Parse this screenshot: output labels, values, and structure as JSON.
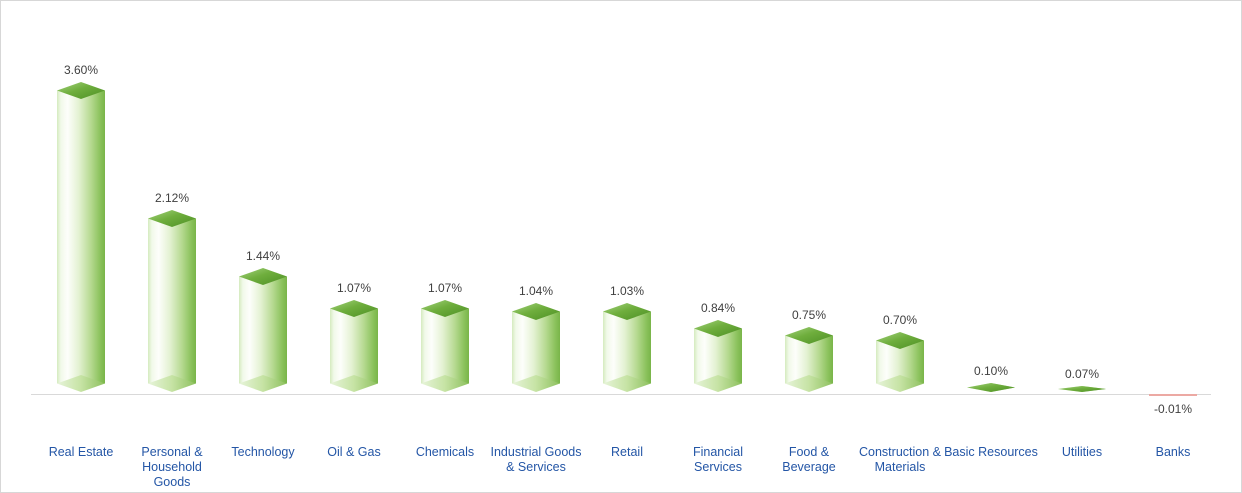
{
  "chart_data": {
    "type": "bar",
    "title": "",
    "xlabel": "",
    "ylabel": "",
    "ylim": [
      -0.1,
      4.0
    ],
    "grid": false,
    "legend": null,
    "categories": [
      "Real Estate",
      "Personal & Household Goods",
      "Technology",
      "Oil & Gas",
      "Chemicals",
      "Industrial Goods & Services",
      "Retail",
      "Financial Services",
      "Food & Beverage",
      "Construction & Materials",
      "Basic Resources",
      "Utilities",
      "Banks"
    ],
    "values": [
      3.6,
      2.12,
      1.44,
      1.07,
      1.07,
      1.04,
      1.03,
      0.84,
      0.75,
      0.7,
      0.1,
      0.07,
      -0.01
    ],
    "value_labels": [
      "3.60%",
      "2.12%",
      "1.44%",
      "1.07%",
      "1.07%",
      "1.04%",
      "1.03%",
      "0.84%",
      "0.75%",
      "0.70%",
      "0.10%",
      "0.07%",
      "-0.01%"
    ],
    "colors": {
      "bar_positive": "#7ab648",
      "bar_negative": "#eca9a3",
      "category_label": "#2456a6",
      "value_label": "#3f3f3f",
      "axis_line": "#d9d9d9"
    }
  }
}
